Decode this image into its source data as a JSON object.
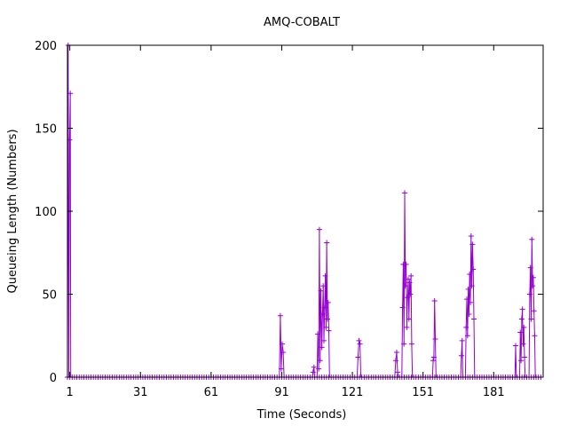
{
  "chart_data": {
    "type": "line",
    "title": "AMQ-COBALT",
    "xlabel": "Time (Seconds)",
    "ylabel": "Queueing Length (Numbers)",
    "xlim": [
      0,
      202
    ],
    "ylim": [
      0,
      200
    ],
    "x_ticks": [
      1,
      31,
      61,
      91,
      121,
      151,
      181
    ],
    "y_ticks": [
      0,
      50,
      100,
      150,
      200
    ],
    "grid": false,
    "legend": "none",
    "marker": "+",
    "series": [
      {
        "color": "#9400d3",
        "points": [
          [
            0.0,
            0
          ],
          [
            0.3,
            200
          ],
          [
            0.6,
            0
          ],
          [
            0.9,
            143
          ],
          [
            1.2,
            171
          ],
          [
            1.4,
            0
          ],
          [
            1.6,
            0
          ],
          [
            90.0,
            0
          ],
          [
            90.4,
            37
          ],
          [
            90.8,
            5
          ],
          [
            91.2,
            20
          ],
          [
            91.6,
            15
          ],
          [
            92.0,
            0
          ],
          [
            104.0,
            0
          ],
          [
            104.3,
            3
          ],
          [
            104.7,
            6
          ],
          [
            105.0,
            0
          ],
          [
            106.0,
            0
          ],
          [
            106.3,
            26
          ],
          [
            106.7,
            5
          ],
          [
            107.0,
            89
          ],
          [
            107.3,
            10
          ],
          [
            107.6,
            52
          ],
          [
            108.0,
            18
          ],
          [
            108.3,
            38
          ],
          [
            108.6,
            55
          ],
          [
            108.9,
            22
          ],
          [
            109.2,
            42
          ],
          [
            109.5,
            61
          ],
          [
            109.8,
            30
          ],
          [
            110.1,
            81
          ],
          [
            110.4,
            35
          ],
          [
            110.7,
            45
          ],
          [
            111.0,
            28
          ],
          [
            111.3,
            0
          ],
          [
            123.0,
            0
          ],
          [
            123.4,
            12
          ],
          [
            123.8,
            22
          ],
          [
            124.2,
            20
          ],
          [
            124.6,
            0
          ],
          [
            139.0,
            0
          ],
          [
            139.4,
            10
          ],
          [
            139.8,
            15
          ],
          [
            140.2,
            3
          ],
          [
            140.6,
            0
          ],
          [
            142.0,
            0
          ],
          [
            142.3,
            42
          ],
          [
            142.6,
            68
          ],
          [
            142.9,
            20
          ],
          [
            143.2,
            111
          ],
          [
            143.5,
            55
          ],
          [
            143.8,
            68
          ],
          [
            144.1,
            30
          ],
          [
            144.4,
            48
          ],
          [
            144.7,
            59
          ],
          [
            145.0,
            35
          ],
          [
            145.3,
            57
          ],
          [
            145.6,
            50
          ],
          [
            145.9,
            61
          ],
          [
            146.2,
            20
          ],
          [
            146.5,
            0
          ],
          [
            155.0,
            0
          ],
          [
            155.3,
            10
          ],
          [
            155.6,
            12
          ],
          [
            155.9,
            46
          ],
          [
            156.2,
            23
          ],
          [
            156.5,
            0
          ],
          [
            167.0,
            0
          ],
          [
            167.3,
            13
          ],
          [
            167.6,
            22
          ],
          [
            167.9,
            0
          ],
          [
            169.0,
            0
          ],
          [
            169.3,
            30
          ],
          [
            169.6,
            47
          ],
          [
            169.9,
            25
          ],
          [
            170.2,
            53
          ],
          [
            170.5,
            38
          ],
          [
            170.8,
            62
          ],
          [
            171.1,
            45
          ],
          [
            171.4,
            85
          ],
          [
            171.7,
            55
          ],
          [
            172.0,
            80
          ],
          [
            172.3,
            65
          ],
          [
            172.6,
            35
          ],
          [
            172.9,
            0
          ],
          [
            190.0,
            0
          ],
          [
            190.3,
            19
          ],
          [
            190.6,
            0
          ],
          [
            192.0,
            0
          ],
          [
            192.3,
            27
          ],
          [
            192.6,
            10
          ],
          [
            192.9,
            35
          ],
          [
            193.2,
            41
          ],
          [
            193.5,
            20
          ],
          [
            193.8,
            30
          ],
          [
            194.1,
            12
          ],
          [
            194.4,
            0
          ],
          [
            196.0,
            0
          ],
          [
            196.3,
            50
          ],
          [
            196.6,
            66
          ],
          [
            196.9,
            35
          ],
          [
            197.2,
            83
          ],
          [
            197.5,
            55
          ],
          [
            197.8,
            60
          ],
          [
            198.1,
            40
          ],
          [
            198.4,
            25
          ],
          [
            198.7,
            0
          ]
        ]
      }
    ]
  }
}
